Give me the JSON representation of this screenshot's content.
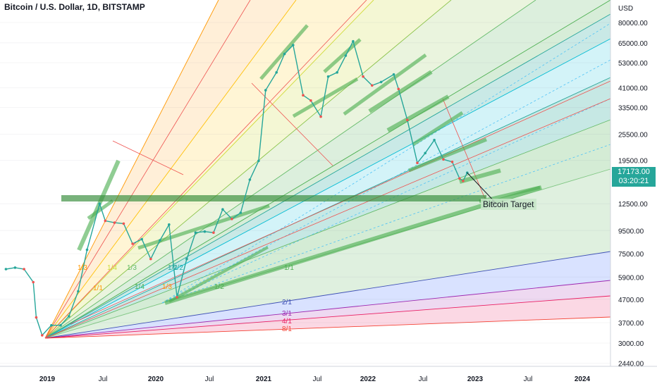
{
  "header": {
    "title": "Bitcoin / U.S. Dollar, 1D, BITSTAMP"
  },
  "price_axis": {
    "currency": "USD",
    "ticks": [
      "80000.00",
      "65000.00",
      "53000.00",
      "41000.00",
      "33500.00",
      "25500.00",
      "19500.00",
      "12500.00",
      "9500.00",
      "7500.00",
      "5900.00",
      "4700.00",
      "3700.00",
      "3000.00",
      "2440.00"
    ]
  },
  "time_axis": {
    "ticks": [
      "2019",
      "Jul",
      "2020",
      "Jul",
      "2021",
      "Jul",
      "2022",
      "Jul",
      "2023",
      "Jul",
      "2024"
    ]
  },
  "last_price": {
    "value": "17173.00",
    "countdown": "03:20:21",
    "color": "#26a69a"
  },
  "annotation": {
    "text": "Bitcoin Target"
  },
  "fan_labels": {
    "primary": [
      "1/3",
      "1/4",
      "1/3",
      "1/2",
      "1/4",
      "1/3",
      "1/1",
      "2/1",
      "3/1",
      "4/1",
      "8/1"
    ],
    "secondary": [
      "1/1",
      "1/2",
      "1/2"
    ]
  },
  "colors": {
    "up": "#26a69a",
    "down": "#ef5350",
    "band": "#4caf50",
    "axis_text": "#131722",
    "grid": "#f0f3fa"
  },
  "chart_data": {
    "type": "line",
    "title": "Bitcoin / U.S. Dollar, 1D, BITSTAMP",
    "ylabel": "USD",
    "yscale": "log",
    "ylim": [
      2300,
      95000
    ],
    "xlim": [
      "2018-08-15",
      "2024-10-01"
    ],
    "series": [
      {
        "name": "Bitcoin / U.S. Dollar",
        "x": [
          "2018-08-15",
          "2018-09-15",
          "2018-10-15",
          "2018-11-15",
          "2018-11-25",
          "2018-12-15",
          "2019-01-15",
          "2019-02-15",
          "2019-03-15",
          "2019-04-15",
          "2019-05-15",
          "2019-06-26",
          "2019-07-15",
          "2019-08-15",
          "2019-09-15",
          "2019-10-15",
          "2019-11-15",
          "2019-12-15",
          "2020-01-15",
          "2020-02-15",
          "2020-03-13",
          "2020-04-15",
          "2020-05-15",
          "2020-06-15",
          "2020-07-15",
          "2020-08-15",
          "2020-09-15",
          "2020-10-15",
          "2020-11-15",
          "2020-12-15",
          "2021-01-08",
          "2021-02-15",
          "2021-03-15",
          "2021-04-14",
          "2021-05-19",
          "2021-06-15",
          "2021-07-20",
          "2021-08-15",
          "2021-09-15",
          "2021-10-15",
          "2021-11-10",
          "2021-12-15",
          "2022-01-15",
          "2022-02-15",
          "2022-03-30",
          "2022-04-15",
          "2022-05-15",
          "2022-06-18",
          "2022-07-15",
          "2022-08-15",
          "2022-09-15",
          "2022-10-15",
          "2022-11-09",
          "2022-11-21",
          "2022-12-05"
        ],
        "values": [
          6400,
          6500,
          6400,
          5600,
          3900,
          3250,
          3600,
          3600,
          3950,
          5100,
          7800,
          12500,
          10500,
          10300,
          10200,
          8300,
          8700,
          7100,
          8600,
          10100,
          4800,
          7100,
          9300,
          9400,
          9300,
          11800,
          10700,
          11400,
          16000,
          19400,
          40000,
          48000,
          58000,
          63500,
          38000,
          36000,
          30500,
          46000,
          48000,
          57000,
          66000,
          46000,
          42000,
          43500,
          47000,
          40500,
          29500,
          19000,
          21000,
          24000,
          19700,
          19200,
          16200,
          15800,
          17173
        ]
      }
    ],
    "projection": {
      "name": "Bitcoin Target",
      "x": "2023-03-15",
      "value": 12500
    }
  }
}
